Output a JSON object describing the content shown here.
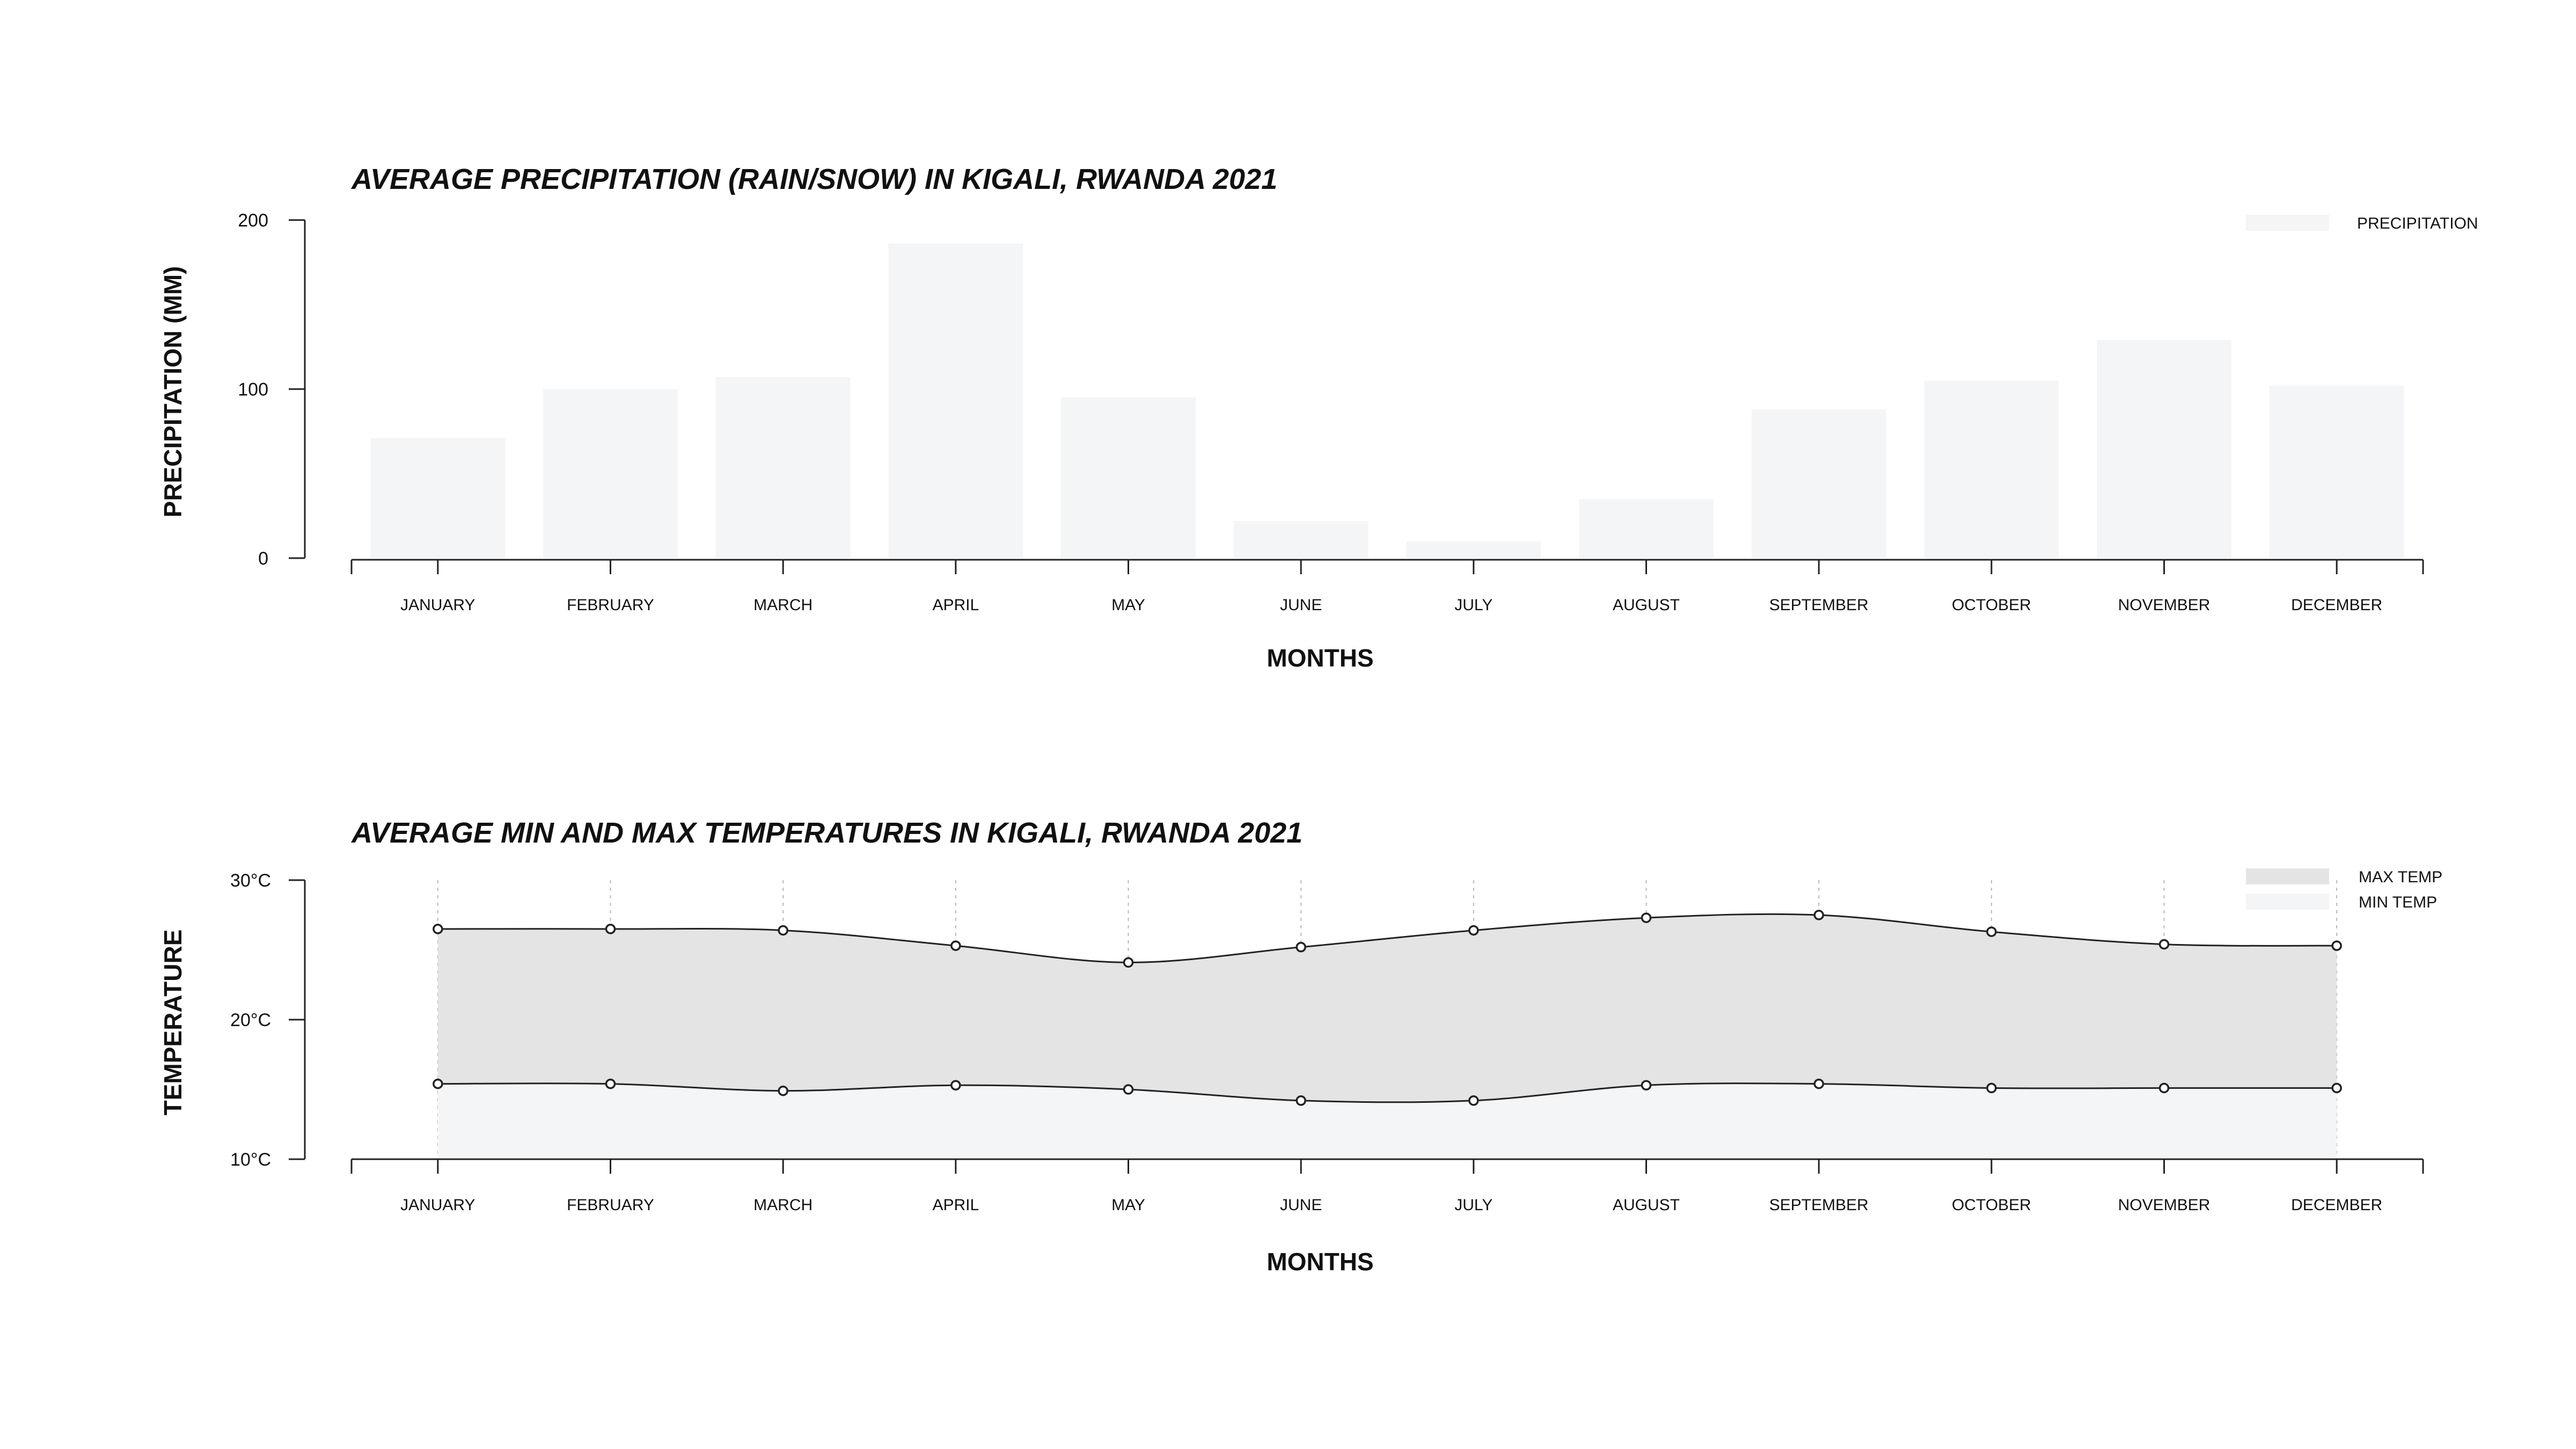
{
  "colors": {
    "background": "#ffffff",
    "precipitation_bar": "#f4f5f6",
    "max_temp_fill": "#e4e4e4",
    "min_temp_fill": "#f4f5f6",
    "line": "#222222",
    "gridline": "#b8b8b8"
  },
  "chart_data": [
    {
      "type": "bar",
      "title": "AVERAGE PRECIPITATION (RAIN/SNOW) IN KIGALI, RWANDA 2021",
      "xlabel": "MONTHS",
      "ylabel": "PRECIPITATION (MM)",
      "categories": [
        "JANUARY",
        "FEBRUARY",
        "MARCH",
        "APRIL",
        "MAY",
        "JUNE",
        "JULY",
        "AUGUST",
        "SEPTEMBER",
        "OCTOBER",
        "NOVEMBER",
        "DECEMBER"
      ],
      "series": [
        {
          "name": "PRECIPITATION",
          "values": [
            71,
            100,
            107,
            186,
            95,
            22,
            10,
            35,
            88,
            105,
            129,
            102
          ]
        }
      ],
      "ylim": [
        0,
        200
      ],
      "yticks": [
        0,
        100,
        200
      ],
      "ytick_labels": [
        "0",
        "100",
        "200"
      ],
      "grid": false,
      "legend": "top-right"
    },
    {
      "type": "area",
      "title": "AVERAGE MIN AND MAX TEMPERATURES IN KIGALI, RWANDA 2021",
      "xlabel": "MONTHS",
      "ylabel": "TEMPERATURE",
      "categories": [
        "JANUARY",
        "FEBRUARY",
        "MARCH",
        "APRIL",
        "MAY",
        "JUNE",
        "JULY",
        "AUGUST",
        "SEPTEMBER",
        "OCTOBER",
        "NOVEMBER",
        "DECEMBER"
      ],
      "series": [
        {
          "name": "MAX TEMP",
          "values": [
            26.5,
            26.5,
            26.4,
            25.3,
            24.1,
            25.2,
            26.4,
            27.3,
            27.5,
            26.3,
            25.4,
            25.3
          ]
        },
        {
          "name": "MIN TEMP",
          "values": [
            15.4,
            15.4,
            14.9,
            15.3,
            15.0,
            14.2,
            14.2,
            15.3,
            15.4,
            15.1,
            15.1,
            15.1
          ]
        }
      ],
      "ylim": [
        10,
        30
      ],
      "yticks": [
        10,
        20,
        30
      ],
      "ytick_labels": [
        "10°C",
        "20°C",
        "30°C"
      ],
      "grid": "vertical dotted",
      "legend": "top-right"
    }
  ]
}
